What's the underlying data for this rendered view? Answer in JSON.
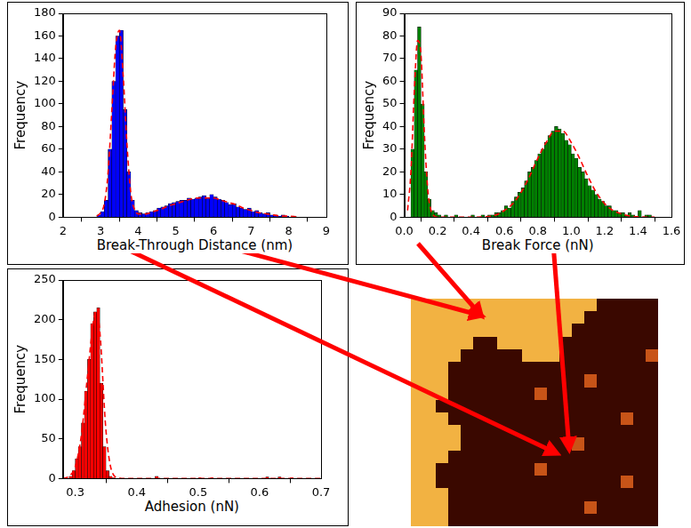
{
  "chart_data": [
    {
      "type": "histogram",
      "xlabel": "Break-Through Distance (nm)",
      "ylabel": "Frequency",
      "bins": [
        2.9,
        3.0,
        3.1,
        3.2,
        3.3,
        3.4,
        3.5,
        3.6,
        3.7,
        3.8,
        3.9,
        4.0,
        4.1,
        4.2,
        4.3,
        4.4,
        4.5,
        4.6,
        4.7,
        4.8,
        4.9,
        5.0,
        5.1,
        5.2,
        5.3,
        5.4,
        5.5,
        5.6,
        5.7,
        5.8,
        5.9,
        6.0,
        6.1,
        6.2,
        6.3,
        6.4,
        6.5,
        6.6,
        6.7,
        6.8,
        6.9,
        7.0,
        7.1,
        7.2,
        7.3,
        7.4,
        7.5,
        7.6,
        7.7,
        7.8,
        7.9,
        8.0,
        8.1,
        8.2
      ],
      "series": [
        {
          "type": "bar",
          "color": "#0000ff",
          "values": [
            2,
            5,
            15,
            60,
            120,
            160,
            165,
            95,
            40,
            15,
            6,
            4,
            3,
            4,
            5,
            6,
            8,
            9,
            10,
            12,
            13,
            14,
            15,
            15,
            17,
            16,
            17,
            18,
            19,
            17,
            20,
            18,
            16,
            15,
            13,
            11,
            12,
            9,
            8,
            7,
            8,
            5,
            6,
            4,
            3,
            4,
            2,
            2,
            1,
            2,
            1,
            0,
            1
          ]
        },
        {
          "type": "line",
          "line_style": "dashed",
          "color": "#ff0000",
          "x": [
            2.9,
            3.0,
            3.1,
            3.2,
            3.3,
            3.4,
            3.5,
            3.6,
            3.7,
            3.8,
            3.9,
            4.0,
            4.2,
            4.4,
            4.6,
            4.8,
            5.0,
            5.2,
            5.4,
            5.6,
            5.8,
            6.0,
            6.2,
            6.4,
            6.6,
            6.8,
            7.0,
            7.2,
            7.4,
            7.6,
            7.8,
            8.0,
            8.2
          ],
          "values": [
            1,
            4,
            12,
            40,
            95,
            150,
            165,
            125,
            65,
            22,
            7,
            3,
            3,
            5,
            7,
            10,
            12,
            14,
            16,
            17,
            17,
            17,
            15,
            13,
            11,
            8,
            6,
            4,
            3,
            2,
            1,
            1,
            0.5
          ]
        }
      ],
      "xlim": [
        2,
        9
      ],
      "ylim": [
        0,
        180
      ],
      "xticks": [
        2,
        3,
        4,
        5,
        6,
        7,
        8,
        9
      ],
      "yticks": [
        0,
        20,
        40,
        60,
        80,
        100,
        120,
        140,
        160,
        180
      ],
      "grid": false
    },
    {
      "type": "histogram",
      "xlabel": "Break Force (nN)",
      "ylabel": "Frequency",
      "bins": [
        0.04,
        0.06,
        0.08,
        0.1,
        0.12,
        0.14,
        0.16,
        0.18,
        0.2,
        0.22,
        0.24,
        0.26,
        0.28,
        0.3,
        0.32,
        0.34,
        0.36,
        0.38,
        0.4,
        0.42,
        0.44,
        0.46,
        0.48,
        0.5,
        0.52,
        0.54,
        0.56,
        0.58,
        0.6,
        0.62,
        0.64,
        0.66,
        0.68,
        0.7,
        0.72,
        0.74,
        0.76,
        0.78,
        0.8,
        0.82,
        0.84,
        0.86,
        0.88,
        0.9,
        0.92,
        0.94,
        0.96,
        0.98,
        1.0,
        1.02,
        1.04,
        1.06,
        1.08,
        1.1,
        1.12,
        1.14,
        1.16,
        1.18,
        1.2,
        1.22,
        1.24,
        1.26,
        1.28,
        1.3,
        1.32,
        1.34,
        1.36,
        1.38,
        1.4,
        1.42,
        1.44,
        1.46,
        1.48
      ],
      "series": [
        {
          "type": "bar",
          "color": "#008000",
          "values": [
            30,
            65,
            84,
            50,
            20,
            8,
            3,
            2,
            1,
            0,
            1,
            0,
            0,
            1,
            0,
            0,
            0,
            0,
            1,
            0,
            0,
            1,
            0,
            1,
            1,
            2,
            2,
            3,
            5,
            4,
            7,
            9,
            11,
            13,
            16,
            20,
            22,
            25,
            28,
            30,
            33,
            36,
            38,
            40,
            39,
            37,
            34,
            32,
            28,
            26,
            22,
            20,
            17,
            14,
            12,
            10,
            8,
            7,
            5,
            5,
            3,
            3,
            2,
            2,
            1,
            2,
            1,
            0,
            3,
            0,
            1,
            1
          ]
        },
        {
          "type": "line",
          "line_style": "dashed",
          "color": "#ff0000",
          "x": [
            0.02,
            0.04,
            0.06,
            0.08,
            0.1,
            0.12,
            0.14,
            0.16,
            0.18,
            0.2,
            0.3,
            0.4,
            0.5,
            0.55,
            0.6,
            0.65,
            0.7,
            0.75,
            0.8,
            0.85,
            0.9,
            0.95,
            1.0,
            1.05,
            1.1,
            1.15,
            1.2,
            1.25,
            1.3,
            1.35,
            1.4,
            1.5
          ],
          "values": [
            3,
            20,
            55,
            78,
            72,
            38,
            13,
            3,
            0.5,
            0,
            0,
            0,
            0.3,
            1,
            3,
            6,
            11,
            18,
            26,
            33,
            38,
            38,
            33,
            26,
            18,
            11,
            6,
            3,
            1.5,
            0.6,
            0.2,
            0
          ]
        }
      ],
      "xlim": [
        0,
        1.6
      ],
      "ylim": [
        0,
        90
      ],
      "xticks": [
        {
          "value": 0,
          "label": "0.0"
        },
        0.2,
        0.4,
        0.6,
        0.8,
        {
          "value": 1,
          "label": "1.0"
        },
        1.2,
        1.4,
        1.6
      ],
      "yticks": [
        0,
        10,
        20,
        30,
        40,
        50,
        60,
        70,
        80,
        90
      ],
      "grid": false
    },
    {
      "type": "histogram",
      "xlabel": "Adhesion (nN)",
      "ylabel": "Frequency",
      "bins": [
        0.29,
        0.295,
        0.3,
        0.305,
        0.31,
        0.315,
        0.32,
        0.325,
        0.33,
        0.335,
        0.34,
        0.345,
        0.35,
        0.355,
        0.36,
        0.365,
        0.37,
        0.375,
        0.38,
        0.385,
        0.39,
        0.395,
        0.4,
        0.405,
        0.41,
        0.415,
        0.42,
        0.425,
        0.43,
        0.435,
        0.44,
        0.445,
        0.45,
        0.455,
        0.46,
        0.465,
        0.47,
        0.475,
        0.48,
        0.485,
        0.49,
        0.495,
        0.5,
        0.505,
        0.51,
        0.515,
        0.52,
        0.525,
        0.53,
        0.535,
        0.54,
        0.545,
        0.55,
        0.555,
        0.56,
        0.565,
        0.57,
        0.575,
        0.58,
        0.585,
        0.59,
        0.595,
        0.6,
        0.605,
        0.61,
        0.615,
        0.62,
        0.625,
        0.63,
        0.635,
        0.64,
        0.645,
        0.65,
        0.655,
        0.66
      ],
      "series": [
        {
          "type": "bar",
          "color": "#ff0000",
          "values": [
            3,
            10,
            25,
            40,
            70,
            110,
            150,
            195,
            210,
            215,
            120,
            40,
            10,
            3,
            1,
            0,
            0,
            0,
            0,
            0,
            0,
            0,
            0,
            0,
            0,
            0,
            0,
            0,
            3,
            0,
            0,
            0,
            0,
            0,
            0,
            0,
            0,
            0,
            0,
            0,
            0,
            0,
            1,
            0,
            0,
            0,
            1,
            0,
            0,
            0,
            0,
            0,
            0,
            0,
            0,
            0,
            0,
            0,
            0,
            0,
            0,
            0,
            0,
            0,
            2,
            0,
            0,
            0,
            2,
            0,
            0,
            0,
            1,
            0
          ]
        },
        {
          "type": "line",
          "line_style": "dashed",
          "color": "#ff0000",
          "x": [
            0.28,
            0.29,
            0.3,
            0.31,
            0.32,
            0.33,
            0.335,
            0.34,
            0.35,
            0.36,
            0.37,
            0.38,
            0.4,
            0.5,
            0.6,
            0.7
          ],
          "values": [
            0,
            3,
            15,
            55,
            130,
            200,
            210,
            185,
            60,
            8,
            1,
            0,
            0,
            0,
            0,
            0
          ]
        }
      ],
      "xlim": [
        0.28,
        0.7
      ],
      "ylim": [
        0,
        250
      ],
      "xticks": [
        0.3,
        0.4,
        0.5,
        0.6,
        0.7
      ],
      "yticks": [
        0,
        50,
        100,
        150,
        200,
        250
      ],
      "grid": false
    },
    {
      "type": "heatmap",
      "tick_labels": false,
      "cells": [
        [
          1,
          1,
          1,
          1,
          1,
          1,
          1,
          1,
          1,
          1,
          1,
          1,
          1,
          1,
          1,
          0,
          0,
          0,
          0,
          0
        ],
        [
          1,
          1,
          1,
          1,
          1,
          1,
          1,
          1,
          1,
          1,
          1,
          1,
          1,
          1,
          0,
          0,
          0,
          0,
          0,
          0
        ],
        [
          1,
          1,
          1,
          1,
          1,
          1,
          1,
          1,
          1,
          1,
          1,
          1,
          1,
          0,
          0,
          0,
          0,
          0,
          0,
          0
        ],
        [
          1,
          1,
          1,
          1,
          1,
          0,
          0,
          1,
          1,
          1,
          1,
          1,
          0,
          0,
          0,
          0,
          0,
          0,
          0,
          0
        ],
        [
          1,
          1,
          1,
          1,
          0,
          0,
          0,
          0,
          0,
          1,
          1,
          1,
          0,
          0,
          0,
          0,
          0,
          0,
          0,
          0.5
        ],
        [
          1,
          1,
          1,
          0,
          0,
          0,
          0,
          0,
          0,
          0,
          0,
          0,
          0,
          0,
          0,
          0,
          0,
          0,
          0,
          0
        ],
        [
          1,
          1,
          1,
          0,
          0,
          0,
          0,
          0,
          0,
          0,
          0,
          0,
          0,
          0,
          0.5,
          0,
          0,
          0,
          0,
          0
        ],
        [
          1,
          1,
          1,
          0,
          0,
          0,
          0,
          0,
          0,
          0,
          0.5,
          0,
          0,
          0,
          0,
          0,
          0,
          0,
          0,
          0
        ],
        [
          1,
          1,
          0,
          0,
          0,
          0,
          0,
          0,
          0,
          0,
          0,
          0,
          0,
          0,
          0,
          0,
          0,
          0,
          0,
          0
        ],
        [
          1,
          1,
          1,
          0,
          0,
          0,
          0,
          0,
          0,
          0,
          0,
          0,
          0,
          0,
          0,
          0,
          0,
          0.5,
          0,
          0
        ],
        [
          1,
          1,
          1,
          1,
          0,
          0,
          0,
          0,
          0,
          0,
          0,
          0,
          0,
          0,
          0,
          0,
          0,
          0,
          0,
          0
        ],
        [
          1,
          1,
          1,
          1,
          0,
          0,
          0,
          0,
          0,
          0,
          0,
          0,
          0,
          0.5,
          0,
          0,
          0,
          0,
          0,
          0
        ],
        [
          1,
          1,
          1,
          0,
          0,
          0,
          0,
          0,
          0,
          0,
          0,
          0,
          0,
          0,
          0,
          0,
          0,
          0,
          0,
          0
        ],
        [
          1,
          1,
          0,
          0,
          0,
          0,
          0,
          0,
          0,
          0,
          0.5,
          0,
          0,
          0,
          0,
          0,
          0,
          0,
          0,
          0
        ],
        [
          1,
          1,
          0,
          0,
          0,
          0,
          0,
          0,
          0,
          0,
          0,
          0,
          0,
          0,
          0,
          0,
          0,
          0.5,
          0,
          0
        ],
        [
          1,
          1,
          1,
          0,
          0,
          0,
          0,
          0,
          0,
          0,
          0,
          0,
          0,
          0,
          0,
          0,
          0,
          0,
          0,
          0
        ],
        [
          1,
          1,
          1,
          0,
          0,
          0,
          0,
          0,
          0,
          0,
          0,
          0,
          0,
          0,
          0.5,
          0,
          0,
          0,
          0,
          0
        ],
        [
          1,
          1,
          1,
          0,
          0,
          0,
          0,
          0,
          0,
          0,
          0,
          0,
          0,
          0,
          0,
          0,
          0,
          0,
          0,
          0
        ]
      ]
    }
  ]
}
